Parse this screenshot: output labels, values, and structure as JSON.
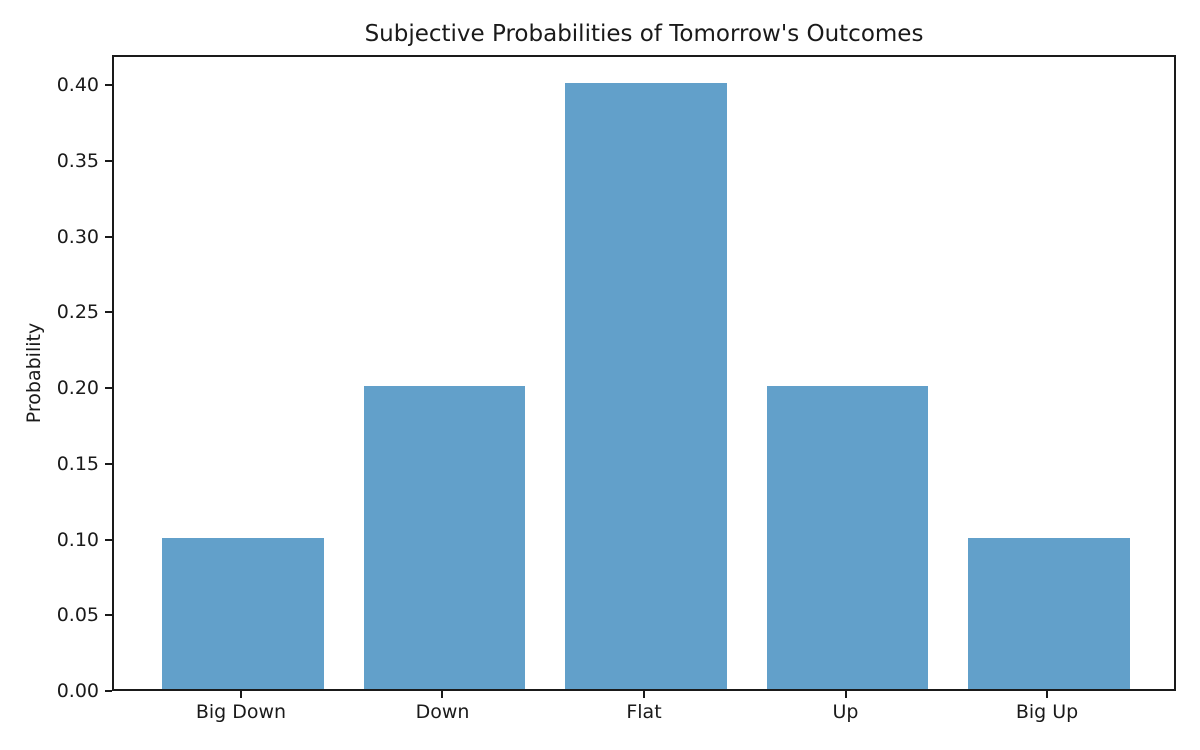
{
  "chart_data": {
    "type": "bar",
    "title": "Subjective Probabilities of Tomorrow's Outcomes",
    "xlabel": "",
    "ylabel": "Probability",
    "categories": [
      "Big Down",
      "Down",
      "Flat",
      "Up",
      "Big Up"
    ],
    "values": [
      0.1,
      0.2,
      0.4,
      0.2,
      0.1
    ],
    "ylim": [
      0,
      0.42
    ],
    "yticks": [
      0.0,
      0.05,
      0.1,
      0.15,
      0.2,
      0.25,
      0.3,
      0.35,
      0.4
    ],
    "ytick_labels": [
      "0.00",
      "0.05",
      "0.10",
      "0.15",
      "0.20",
      "0.25",
      "0.30",
      "0.35",
      "0.40"
    ],
    "grid": false,
    "legend": null,
    "colors": {
      "bar": "#62a0ca",
      "axis": "#1a1a1a",
      "background": "#ffffff"
    }
  }
}
